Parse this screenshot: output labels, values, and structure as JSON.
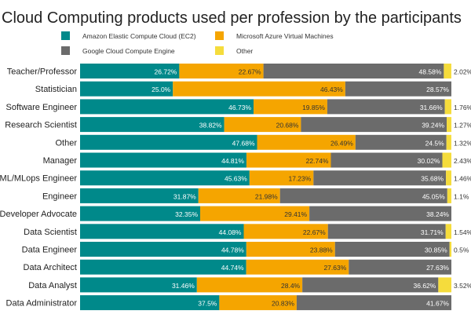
{
  "chart_data": {
    "type": "bar",
    "orientation": "horizontal",
    "stacked": true,
    "normalized": true,
    "title": "Cloud Computing products used per profession by the participants",
    "legend_position": "top",
    "grid": false,
    "xlim": [
      0,
      100
    ],
    "categories": [
      "Teacher/Professor",
      "Statistician",
      "Software Engineer",
      "Research Scientist",
      "Other",
      "Manager",
      "ML/MLops Engineer",
      "Engineer",
      "Developer Advocate",
      "Data Scientist",
      "Data Engineer",
      "Data Architect",
      "Data Analyst",
      "Data Administrator"
    ],
    "series": [
      {
        "name": "Amazon Elastic Compute Cloud (EC2)",
        "color": "#00898A",
        "values": [
          26.72,
          25.0,
          46.73,
          38.82,
          47.68,
          44.81,
          45.63,
          31.87,
          32.35,
          44.08,
          44.78,
          44.74,
          31.46,
          37.5
        ],
        "labels": [
          "26.72%",
          "25.0%",
          "46.73%",
          "38.82%",
          "47.68%",
          "44.81%",
          "45.63%",
          "31.87%",
          "32.35%",
          "44.08%",
          "44.78%",
          "44.74%",
          "31.46%",
          "37.5%"
        ]
      },
      {
        "name": "Microsoft Azure Virtual Machines",
        "color": "#F5A500",
        "values": [
          22.67,
          46.43,
          19.85,
          20.68,
          26.49,
          22.74,
          17.23,
          21.98,
          29.41,
          22.67,
          23.88,
          27.63,
          28.4,
          20.83
        ],
        "labels": [
          "22.67%",
          "46.43%",
          "19.85%",
          "20.68%",
          "26.49%",
          "22.74%",
          "17.23%",
          "21.98%",
          "29.41%",
          "22.67%",
          "23.88%",
          "27.63%",
          "28.4%",
          "20.83%"
        ]
      },
      {
        "name": "Google Cloud Compute Engine",
        "color": "#6B6B6B",
        "values": [
          48.58,
          28.57,
          31.66,
          39.24,
          24.5,
          30.02,
          35.68,
          45.05,
          38.24,
          31.71,
          30.85,
          27.63,
          36.62,
          41.67
        ],
        "labels": [
          "48.58%",
          "28.57%",
          "31.66%",
          "39.24%",
          "24.5%",
          "30.02%",
          "35.68%",
          "45.05%",
          "38.24%",
          "31.71%",
          "30.85%",
          "27.63%",
          "36.62%",
          "41.67%"
        ]
      },
      {
        "name": "Other",
        "color": "#F5DC3C",
        "values": [
          2.02,
          0,
          1.76,
          1.27,
          1.32,
          2.43,
          1.46,
          1.1,
          0,
          1.54,
          0.5,
          0,
          3.52,
          0
        ],
        "labels": [
          "2.02%",
          "",
          "1.76%",
          "1.27%",
          "1.32%",
          "2.43%",
          "1.46%",
          "1.1%",
          "",
          "1.54%",
          "0.5%",
          "",
          "3.52%",
          ""
        ]
      }
    ]
  }
}
